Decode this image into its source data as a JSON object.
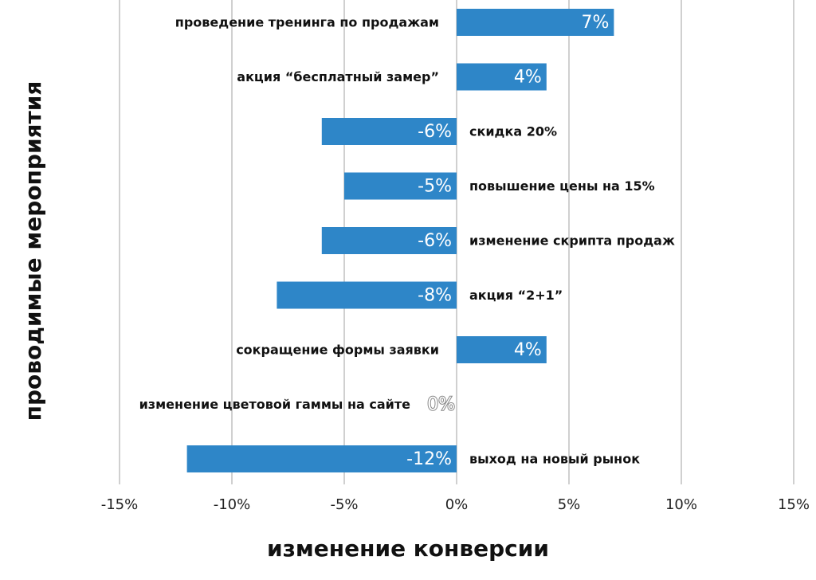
{
  "chart_data": {
    "type": "bar",
    "orientation": "horizontal",
    "categories": [
      "проведение тренинга по продажам",
      "акция “бесплатный замер”",
      "скидка 20%",
      "повышение цены на 15%",
      "изменение скрипта продаж",
      "акция “2+1”",
      "сокращение формы заявки",
      "изменение цветовой гаммы на сайте",
      "выход на новый рынок"
    ],
    "values": [
      7,
      4,
      -6,
      -5,
      -6,
      -8,
      4,
      0,
      -12
    ],
    "value_labels": [
      "7%",
      "4%",
      "-6%",
      "-5%",
      "-6%",
      "-8%",
      "4%",
      "0%",
      "-12%"
    ],
    "xlim": [
      -15,
      15
    ],
    "xticks": [
      -15,
      -10,
      -5,
      0,
      5,
      10,
      15
    ],
    "xtick_labels": [
      "-15%",
      "-10%",
      "-5%",
      "0%",
      "5%",
      "10%",
      "15%"
    ],
    "xlabel": "изменение конверсии",
    "ylabel": "проводимые мероприятия",
    "grid": "vertical",
    "bar_color": "#2e86c8",
    "legend": "none"
  }
}
